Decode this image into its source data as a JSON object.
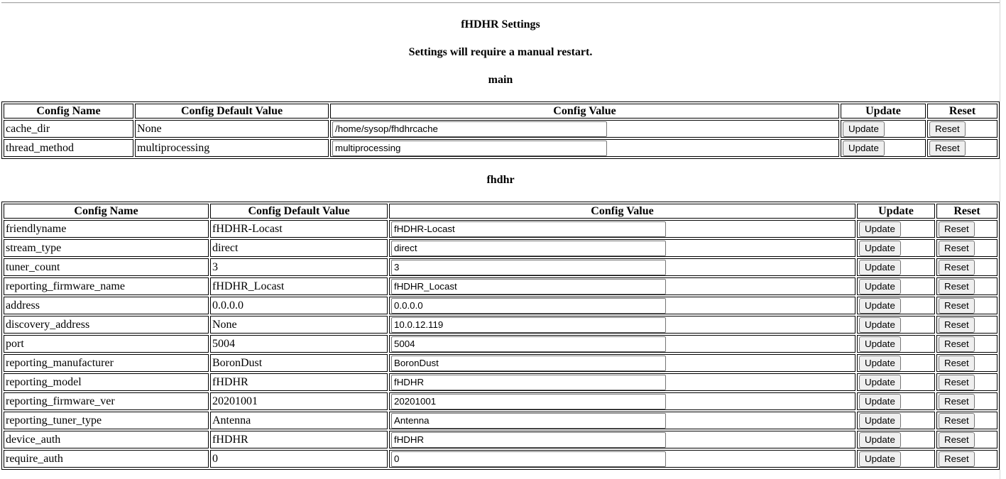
{
  "title": "fHDHR Settings",
  "subtitle": "Settings will require a manual restart.",
  "table_columns": [
    "Config Name",
    "Config Default Value",
    "Config Value",
    "Update",
    "Reset"
  ],
  "buttons": {
    "update_label": "Update",
    "reset_label": "Reset"
  },
  "sections": [
    {
      "heading": "main",
      "rows": [
        {
          "name": "cache_dir",
          "default": "None",
          "value": "/home/sysop/fhdhrcache"
        },
        {
          "name": "thread_method",
          "default": "multiprocessing",
          "value": "multiprocessing"
        }
      ]
    },
    {
      "heading": "fhdhr",
      "rows": [
        {
          "name": "friendlyname",
          "default": "fHDHR-Locast",
          "value": "fHDHR-Locast"
        },
        {
          "name": "stream_type",
          "default": "direct",
          "value": "direct"
        },
        {
          "name": "tuner_count",
          "default": "3",
          "value": "3"
        },
        {
          "name": "reporting_firmware_name",
          "default": "fHDHR_Locast",
          "value": "fHDHR_Locast"
        },
        {
          "name": "address",
          "default": "0.0.0.0",
          "value": "0.0.0.0"
        },
        {
          "name": "discovery_address",
          "default": "None",
          "value": "10.0.12.119"
        },
        {
          "name": "port",
          "default": "5004",
          "value": "5004"
        },
        {
          "name": "reporting_manufacturer",
          "default": "BoronDust",
          "value": "BoronDust"
        },
        {
          "name": "reporting_model",
          "default": "fHDHR",
          "value": "fHDHR"
        },
        {
          "name": "reporting_firmware_ver",
          "default": "20201001",
          "value": "20201001"
        },
        {
          "name": "reporting_tuner_type",
          "default": "Antenna",
          "value": "Antenna"
        },
        {
          "name": "device_auth",
          "default": "fHDHR",
          "value": "fHDHR"
        },
        {
          "name": "require_auth",
          "default": "0",
          "value": "0"
        }
      ]
    }
  ],
  "colors": {
    "table_border": "#000000",
    "control_border": "#767676",
    "button_bg": "#efefef",
    "divider": "#a9a9a9",
    "text": "#000000",
    "background": "#ffffff"
  }
}
